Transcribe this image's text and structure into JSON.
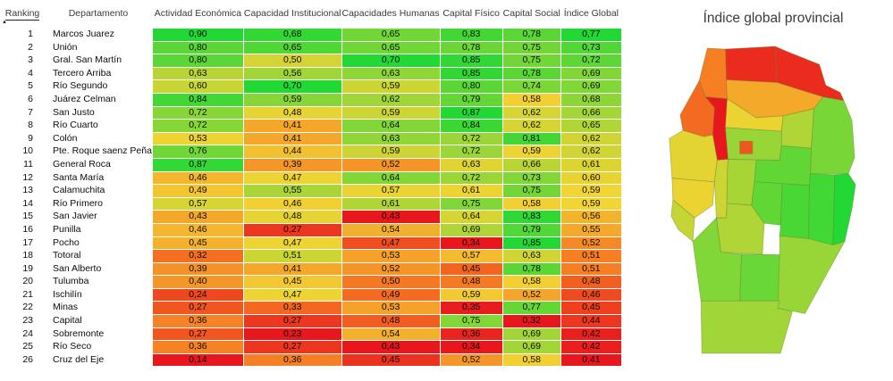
{
  "table": {
    "columns": [
      {
        "label": "Ranking"
      },
      {
        "label": "Departamento"
      },
      {
        "label": "Actividad Económica"
      },
      {
        "label": "Capacidad Institucional"
      },
      {
        "label": "Capacidades Humanas"
      },
      {
        "label": "Capital Físico"
      },
      {
        "label": "Capital Social"
      },
      {
        "label": "Índice Global"
      }
    ],
    "sorted_column": "Ranking",
    "sort_direction": "ascending",
    "rows": [
      {
        "ranking": "1",
        "departamento": "Marcos Juarez",
        "values": [
          "0,90",
          "0,68",
          "0,65",
          "0,83",
          "0,78",
          "0,77"
        ]
      },
      {
        "ranking": "2",
        "departamento": "Unión",
        "values": [
          "0,80",
          "0,65",
          "0,65",
          "0,78",
          "0,75",
          "0,73"
        ]
      },
      {
        "ranking": "3",
        "departamento": "Gral. San Martín",
        "values": [
          "0,80",
          "0,50",
          "0,70",
          "0,85",
          "0,75",
          "0,72"
        ]
      },
      {
        "ranking": "4",
        "departamento": "Tercero Arriba",
        "values": [
          "0,63",
          "0,56",
          "0,63",
          "0,85",
          "0,78",
          "0,69"
        ]
      },
      {
        "ranking": "5",
        "departamento": "Río Segundo",
        "values": [
          "0,60",
          "0,70",
          "0,59",
          "0,80",
          "0,74",
          "0,69"
        ]
      },
      {
        "ranking": "6",
        "departamento": "Juárez Celman",
        "values": [
          "0,84",
          "0,59",
          "0,62",
          "0,79",
          "0,58",
          "0,68"
        ]
      },
      {
        "ranking": "7",
        "departamento": "San Justo",
        "values": [
          "0,72",
          "0,48",
          "0,59",
          "0,87",
          "0,62",
          "0,66"
        ]
      },
      {
        "ranking": "8",
        "departamento": "Río Cuarto",
        "values": [
          "0,72",
          "0,41",
          "0,64",
          "0,84",
          "0,62",
          "0,65"
        ]
      },
      {
        "ranking": "9",
        "departamento": "Colón",
        "values": [
          "0,53",
          "0,41",
          "0,63",
          "0,72",
          "0,81",
          "0,62"
        ]
      },
      {
        "ranking": "10",
        "departamento": "Pte. Roque saenz Peña",
        "values": [
          "0,76",
          "0,44",
          "0,59",
          "0,72",
          "0,59",
          "0,62"
        ]
      },
      {
        "ranking": "11",
        "departamento": "General Roca",
        "values": [
          "0,87",
          "0,39",
          "0,52",
          "0,63",
          "0,66",
          "0,61"
        ]
      },
      {
        "ranking": "12",
        "departamento": "Santa María",
        "values": [
          "0,46",
          "0,47",
          "0,64",
          "0,72",
          "0,73",
          "0,60"
        ]
      },
      {
        "ranking": "13",
        "departamento": "Calamuchita",
        "values": [
          "0,49",
          "0,55",
          "0,57",
          "0,61",
          "0,75",
          "0,59"
        ]
      },
      {
        "ranking": "14",
        "departamento": "Río Primero",
        "values": [
          "0,57",
          "0,46",
          "0,61",
          "0,75",
          "0,58",
          "0,59"
        ]
      },
      {
        "ranking": "15",
        "departamento": "San Javier",
        "values": [
          "0,43",
          "0,48",
          "0,43",
          "0,64",
          "0,83",
          "0,56"
        ]
      },
      {
        "ranking": "16",
        "departamento": "Punilla",
        "values": [
          "0,46",
          "0,27",
          "0,54",
          "0,69",
          "0,79",
          "0,55"
        ]
      },
      {
        "ranking": "17",
        "departamento": "Pocho",
        "values": [
          "0,45",
          "0,47",
          "0,47",
          "0,34",
          "0,85",
          "0,52"
        ]
      },
      {
        "ranking": "18",
        "departamento": "Totoral",
        "values": [
          "0,32",
          "0,51",
          "0,53",
          "0,57",
          "0,63",
          "0,51"
        ]
      },
      {
        "ranking": "19",
        "departamento": "San Alberto",
        "values": [
          "0,39",
          "0,41",
          "0,52",
          "0,45",
          "0,78",
          "0,51"
        ]
      },
      {
        "ranking": "20",
        "departamento": "Tulumba",
        "values": [
          "0,40",
          "0,45",
          "0,50",
          "0,48",
          "0,58",
          "0,48"
        ]
      },
      {
        "ranking": "21",
        "departamento": "Ischilín",
        "values": [
          "0,24",
          "0,47",
          "0,49",
          "0,59",
          "0,52",
          "0,46"
        ]
      },
      {
        "ranking": "22",
        "departamento": "Minas",
        "values": [
          "0,27",
          "0,33",
          "0,53",
          "0,35",
          "0,77",
          "0,45"
        ]
      },
      {
        "ranking": "23",
        "departamento": "Capital",
        "values": [
          "0,36",
          "0,27",
          "0,48",
          "0,75",
          "0,32",
          "0,44"
        ]
      },
      {
        "ranking": "24",
        "departamento": "Sobremonte",
        "values": [
          "0,27",
          "0,23",
          "0,54",
          "0,36",
          "0,69",
          "0,42"
        ]
      },
      {
        "ranking": "25",
        "departamento": "Río Seco",
        "values": [
          "0,36",
          "0,27",
          "0,43",
          "0,34",
          "0,69",
          "0,42"
        ]
      },
      {
        "ranking": "26",
        "departamento": "Cruz del Eje",
        "values": [
          "0,14",
          "0,36",
          "0,45",
          "0,52",
          "0,58",
          "0,41"
        ]
      }
    ]
  },
  "map": {
    "title": "Índice global provincial",
    "metric": "Índice Global"
  },
  "colors": {
    "scale_low": "#e8161d",
    "scale_mid": "#f2d432",
    "scale_high": "#21d834"
  }
}
